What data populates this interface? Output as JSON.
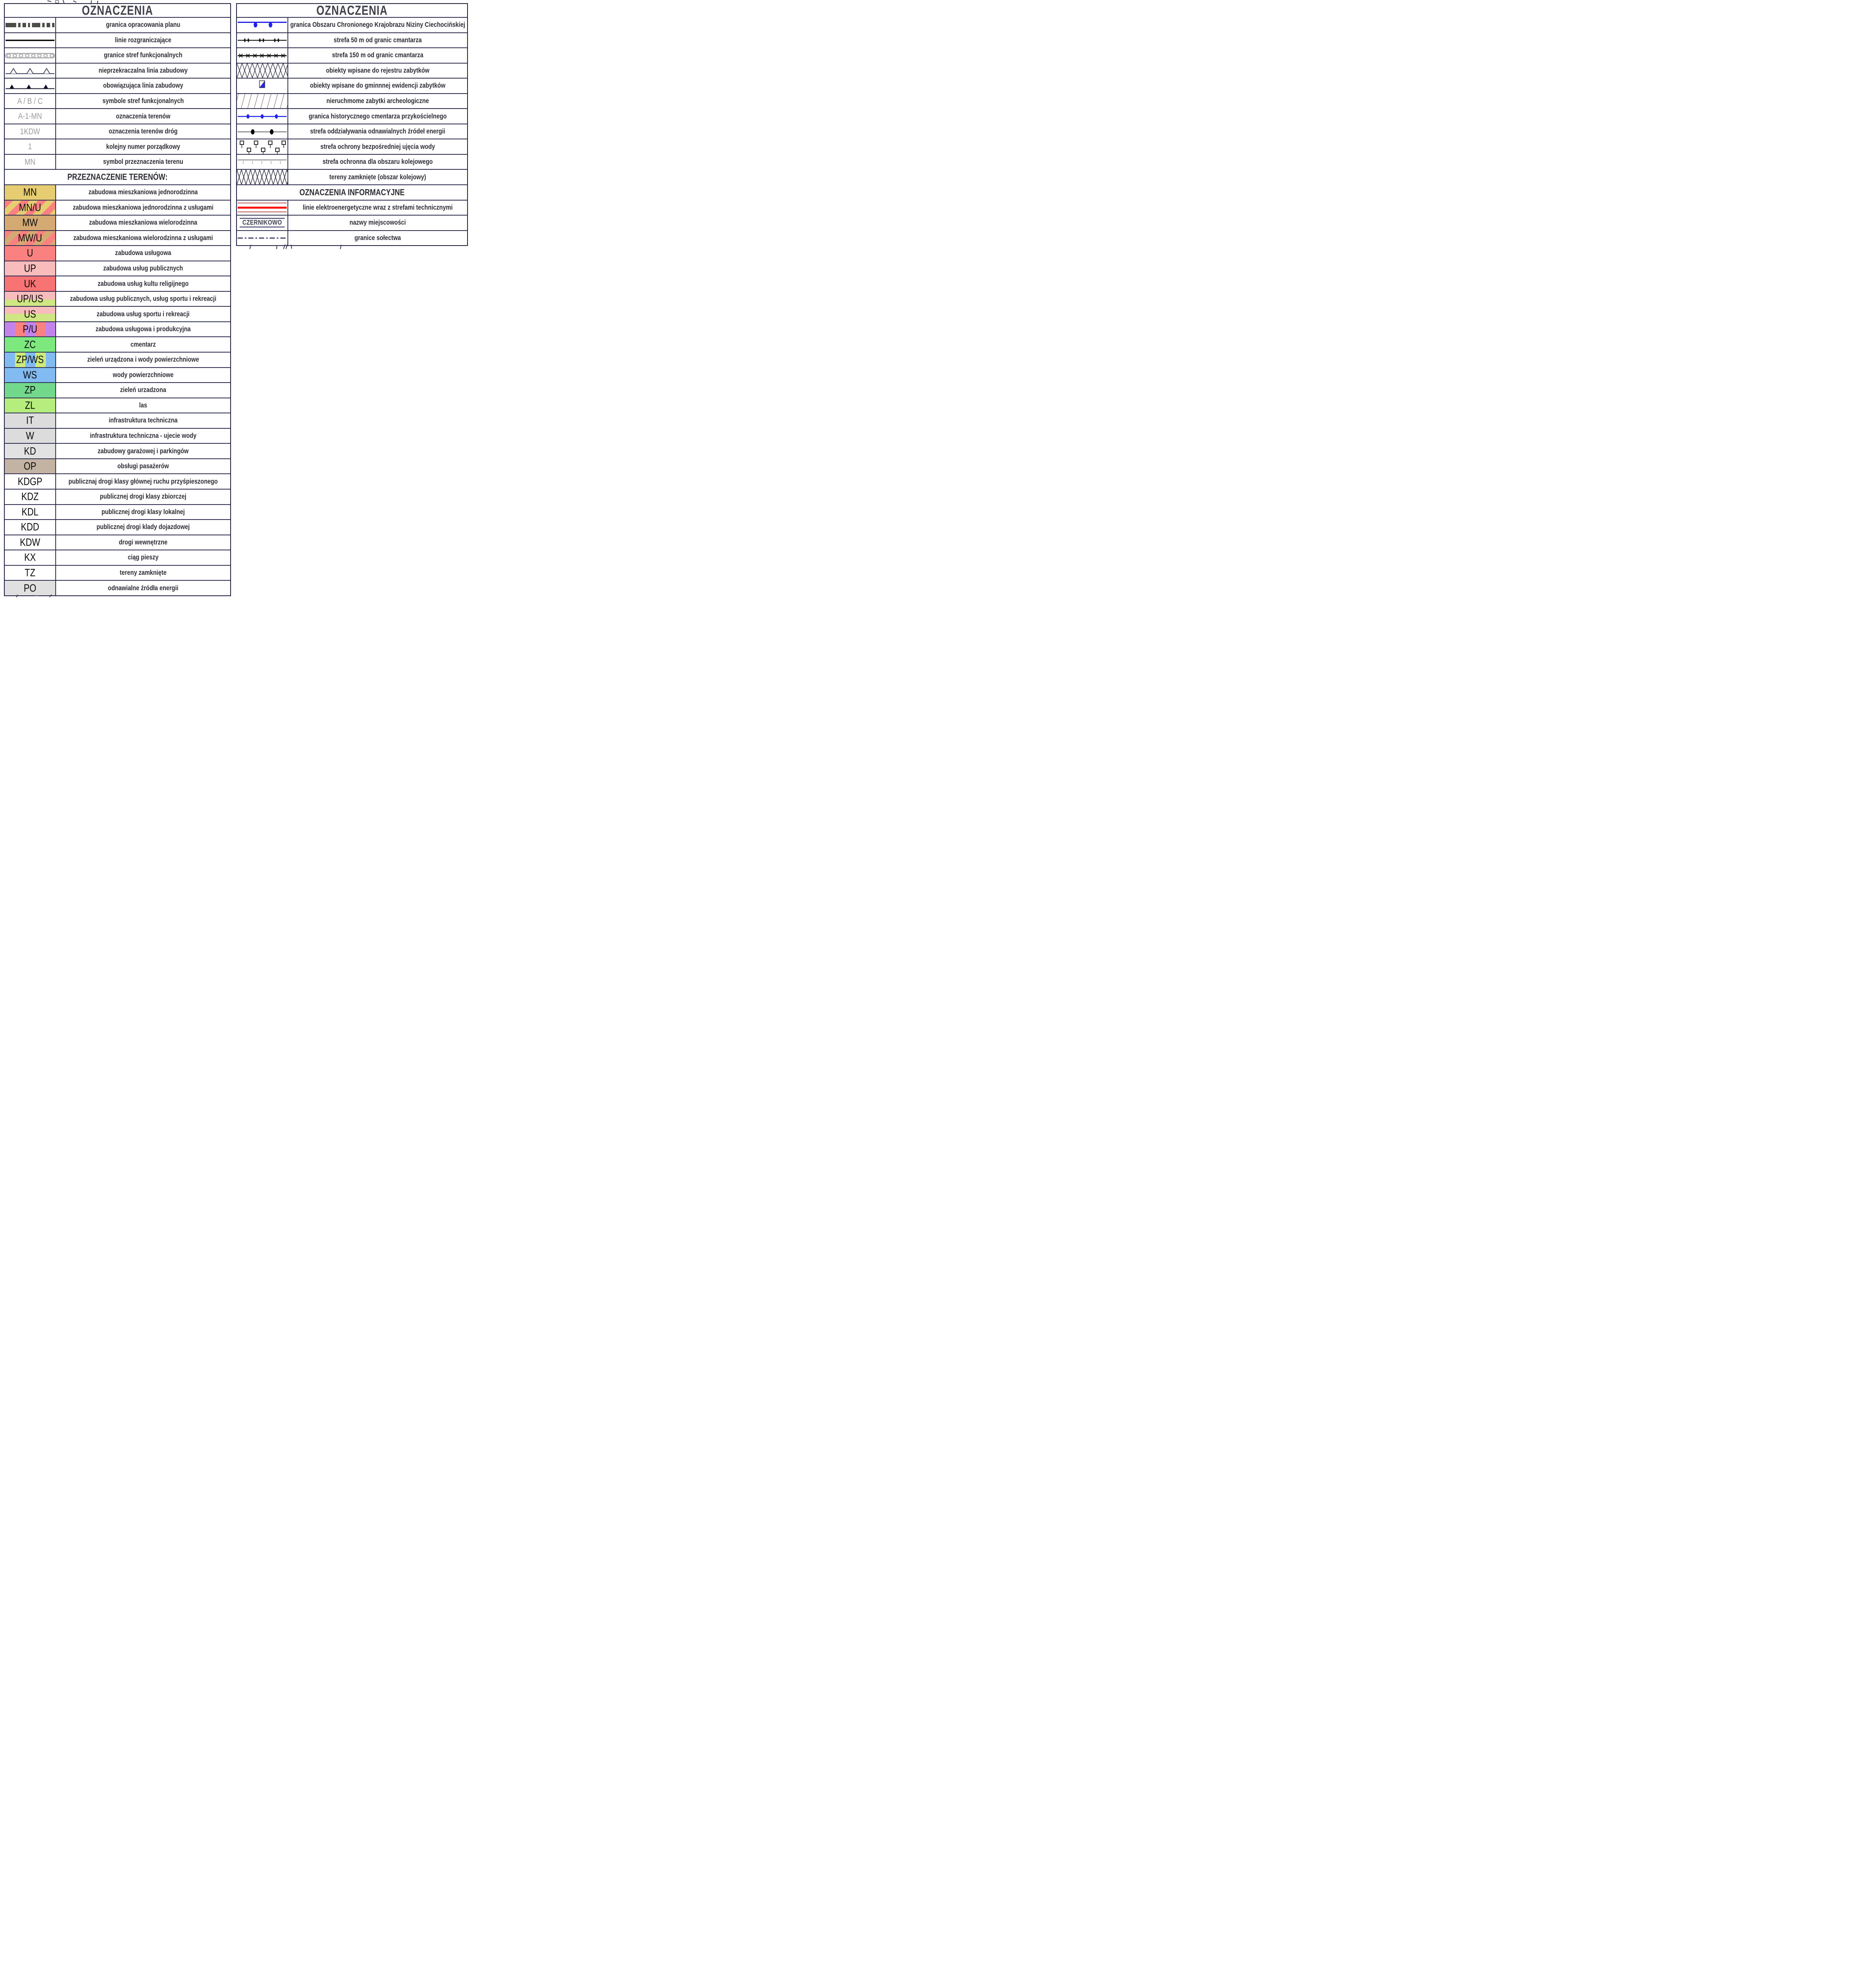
{
  "colors": {
    "accent_blue": "#2121ee",
    "accent_red": "#ff0a0a",
    "dark_red": "#9a1414",
    "navy": "#1c1c3c",
    "gray_band": "#b3b3b3",
    "gray_line": "#ababab",
    "gray_code_text": "#9b9b9b",
    "header_text": "#40404c",
    "label_text": "#2d2d36"
  },
  "left_table": {
    "title": "OZNACZENIA",
    "symbol_rows": [
      {
        "symbol": {
          "type": "plan-boundary-bar",
          "color": "#4e4c48"
        },
        "label": "granica opracowania planu"
      },
      {
        "symbol": {
          "type": "solid-line",
          "color": "#000000"
        },
        "label": "linie rozgraniczające"
      },
      {
        "symbol": {
          "type": "circle-band",
          "color": "#b3b3b3"
        },
        "label": "granice stref funkcjonalnych"
      },
      {
        "symbol": {
          "type": "open-triangle-line",
          "color": "#1c1c3c"
        },
        "label": "nieprzekraczalna linia zabudowy"
      },
      {
        "symbol": {
          "type": "filled-triangle-line",
          "color": "#10102a"
        },
        "label": "obowiązująca linia zabudowy"
      },
      {
        "symbol": {
          "type": "text",
          "text": "A / B / C"
        },
        "label": "symbole stref funkcjonalnych"
      },
      {
        "symbol": {
          "type": "text",
          "text": "A-1-MN"
        },
        "label": "oznaczenia terenów"
      },
      {
        "symbol": {
          "type": "text",
          "text": "1KDW"
        },
        "label": "oznaczenia terenów dróg"
      },
      {
        "symbol": {
          "type": "text",
          "text": "1"
        },
        "label": "kolejny numer porządkowy"
      },
      {
        "symbol": {
          "type": "text",
          "text": "MN"
        },
        "label": "symbol przeznaczenia terenu"
      }
    ],
    "subheader": "PRZEZNACZENIE TERENÓW:",
    "land_use_rows": [
      {
        "code": "MN",
        "swatch": {
          "kind": "solid",
          "colors": [
            "#e7cd72"
          ]
        },
        "label": "zabudowa mieszkaniowa jednorodzinna"
      },
      {
        "code": "MN/U",
        "swatch": {
          "kind": "diag",
          "colors": [
            "#fb8181",
            "#e7cd72"
          ]
        },
        "label": "zabudowa mieszkaniowa jednorodzinna z usługami"
      },
      {
        "code": "MW",
        "swatch": {
          "kind": "solid",
          "colors": [
            "#d5aa72"
          ]
        },
        "label": "zabudowa mieszkaniowa wielorodzinna"
      },
      {
        "code": "MW/U",
        "swatch": {
          "kind": "diag",
          "colors": [
            "#fb8181",
            "#d5aa72"
          ]
        },
        "label": "zabudowa mieszkaniowa wielorodzinna z usługami"
      },
      {
        "code": "U",
        "swatch": {
          "kind": "solid",
          "colors": [
            "#fb8181"
          ]
        },
        "label": "zabudowa usługowa"
      },
      {
        "code": "UP",
        "swatch": {
          "kind": "solid",
          "colors": [
            "#f9bcbc"
          ]
        },
        "label": "zabudowa usług publicznych"
      },
      {
        "code": "UK",
        "swatch": {
          "kind": "solid",
          "colors": [
            "#f87474"
          ]
        },
        "label": "zabudowa usług kultu religijnego"
      },
      {
        "code": "UP/US",
        "swatch": {
          "kind": "hsplit",
          "colors": [
            "#f9bcbc",
            "#cfe783"
          ],
          "split": 55
        },
        "label": "zabudowa usług publicznych, usług sportu i rekreacji"
      },
      {
        "code": "US",
        "swatch": {
          "kind": "hsplit",
          "colors": [
            "#f9bcbc",
            "#cfe783"
          ],
          "split": 48
        },
        "label": "zabudowa usług sportu i rekreacji"
      },
      {
        "code": "P/U",
        "swatch": {
          "kind": "vert",
          "colors": [
            "#c283ea",
            "#fa8181"
          ]
        },
        "label": "zabudowa usługowa i produkcyjna"
      },
      {
        "code": "ZC",
        "swatch": {
          "kind": "solid",
          "colors": [
            "#7de87e"
          ]
        },
        "label": "cmentarz"
      },
      {
        "code": "ZP/WS",
        "swatch": {
          "kind": "vert",
          "colors": [
            "#82bbf2",
            "#cdea7c"
          ]
        },
        "label": "zieleń urządzona i wody powierzchniowe"
      },
      {
        "code": "WS",
        "swatch": {
          "kind": "solid",
          "colors": [
            "#82bbf2"
          ]
        },
        "label": "wody powierzchniowe"
      },
      {
        "code": "ZP",
        "swatch": {
          "kind": "solid",
          "colors": [
            "#72d88c"
          ]
        },
        "label": "zieleń urzadzona"
      },
      {
        "code": "ZL",
        "swatch": {
          "kind": "solid",
          "colors": [
            "#b5ee7c"
          ]
        },
        "label": "las"
      },
      {
        "code": "IT",
        "swatch": {
          "kind": "solid",
          "colors": [
            "#dcdcdc"
          ]
        },
        "label": "infrastruktura techniczna"
      },
      {
        "code": "W",
        "swatch": {
          "kind": "solid",
          "colors": [
            "#dcdcdc"
          ]
        },
        "label": "infrastruktura techniczna - ujecie wody"
      },
      {
        "code": "KD",
        "swatch": {
          "kind": "solid",
          "colors": [
            "#e2e2e2"
          ]
        },
        "label": "zabudowy garażowej i parkingów"
      },
      {
        "code": "OP",
        "swatch": {
          "kind": "solid",
          "colors": [
            "#c2b3a3"
          ]
        },
        "label": "obsługi pasażerów"
      },
      {
        "code": "KDGP",
        "swatch": {
          "kind": "solid",
          "colors": [
            "#ffffff"
          ]
        },
        "label": "publicznaj drogi klasy głównej ruchu przyśpieszonego"
      },
      {
        "code": "KDZ",
        "swatch": {
          "kind": "solid",
          "colors": [
            "#ffffff"
          ]
        },
        "label": "publicznej drogi klasy zbiorczej"
      },
      {
        "code": "KDL",
        "swatch": {
          "kind": "solid",
          "colors": [
            "#ffffff"
          ]
        },
        "label": "publicznej drogi klasy lokalnej"
      },
      {
        "code": "KDD",
        "swatch": {
          "kind": "solid",
          "colors": [
            "#ffffff"
          ]
        },
        "label": "publicznej drogi klady dojazdowej"
      },
      {
        "code": "KDW",
        "swatch": {
          "kind": "solid",
          "colors": [
            "#ffffff"
          ]
        },
        "label": "drogi wewnętrzne"
      },
      {
        "code": "KX",
        "swatch": {
          "kind": "solid",
          "colors": [
            "#ffffff"
          ]
        },
        "label": "ciąg pieszy"
      },
      {
        "code": "TZ",
        "swatch": {
          "kind": "solid",
          "colors": [
            "#ffffff"
          ]
        },
        "label": "tereny zamknięte"
      },
      {
        "code": "PO",
        "swatch": {
          "kind": "solid",
          "colors": [
            "#e0e0e0"
          ]
        },
        "label": "odnawialne źródła energii"
      }
    ]
  },
  "right_table": {
    "title": "OZNACZENIA",
    "symbol_rows": [
      {
        "symbol": {
          "type": "blue-drop-line"
        },
        "label": "granica Obszaru Chronionego Krajobrazu Niziny Ciechocińskiej"
      },
      {
        "symbol": {
          "type": "plus-pair-line"
        },
        "label": "strefa 50 m od granic cmantarza"
      },
      {
        "symbol": {
          "type": "x-line"
        },
        "label": "strefa 150 m od granic cmantarza"
      },
      {
        "symbol": {
          "type": "crosshatch"
        },
        "label": "obiekty wpisane do rejestru zabytków"
      },
      {
        "symbol": {
          "type": "blue-triangle-square"
        },
        "label": "obiekty wpisane do gminnnej ewidencji zabytków"
      },
      {
        "symbol": {
          "type": "diagonal-hatch"
        },
        "label": "nieruchmome zabytki archeologiczne"
      },
      {
        "symbol": {
          "type": "blue-dot-line"
        },
        "label": "granica historycznego cmentarza przykościelnego"
      },
      {
        "symbol": {
          "type": "black-dot-line"
        },
        "label": "strefa oddziaływania odnawialnych źródeł energii"
      },
      {
        "symbol": {
          "type": "square-chain"
        },
        "label": "strefa ochrony bezpośredniej ujęcia wody"
      },
      {
        "symbol": {
          "type": "tick-line"
        },
        "label": "strefa ochronna dla obszaru kolejowego"
      },
      {
        "symbol": {
          "type": "crosshatch-dense"
        },
        "label": "tereny zamknięte (obszar kolejowy)"
      }
    ],
    "subheader": "OZNACZENIA INFORMACYJNE",
    "info_rows": [
      {
        "symbol": {
          "type": "power-lines"
        },
        "label": "linie elektroenergetyczne wraz z strefami technicznymi"
      },
      {
        "symbol": {
          "type": "place-name",
          "text": "CZERNIKOWO"
        },
        "label": "nazwy miejscowości"
      },
      {
        "symbol": {
          "type": "dash-dot-line"
        },
        "label": "granice sołectwa"
      }
    ]
  }
}
